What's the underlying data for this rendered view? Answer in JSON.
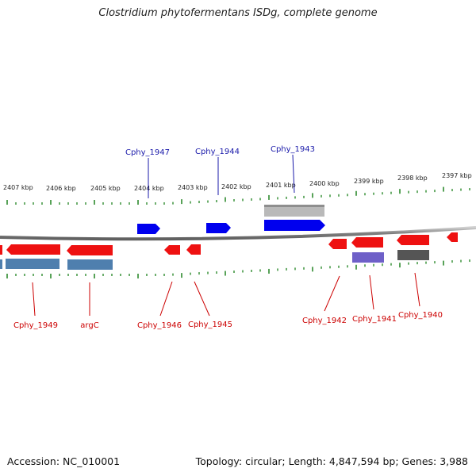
{
  "header": {
    "title": "Clostridium phytofermentans ISDg, complete genome"
  },
  "footer": {
    "accession": "Accession: NC_010001",
    "summary": "Topology: circular; Length: 4,847,594 bp; Genes: 3,988"
  },
  "colors": {
    "backbone": "#8a8a8a",
    "tick": "#2e8b2e",
    "forward_gene": "#0000ee",
    "reverse_gene": "#ee1111",
    "forward_label": "#1a1aaa",
    "reverse_label": "#cc0000",
    "blue_gray_feature": "#4f7fae",
    "violet_feature": "#6e60c8",
    "dark_feature": "#555555",
    "light_feature": "#b9b9b9"
  },
  "coordinate_labels": [
    "2407 kbp",
    "2406 kbp",
    "2405 kbp",
    "2404 kbp",
    "2403 kbp",
    "2402 kbp",
    "2401 kbp",
    "2400 kbp",
    "2399 kbp",
    "2398 kbp",
    "2397 kbp"
  ],
  "forward_genes": [
    {
      "name": "Cphy_1947",
      "icon": "right-arrow-icon"
    },
    {
      "name": "Cphy_1944",
      "icon": "right-arrow-icon"
    },
    {
      "name": "Cphy_1943",
      "icon": "right-arrow-icon"
    }
  ],
  "reverse_genes": [
    {
      "name": "Cphy_1949",
      "icon": "left-arrow-icon"
    },
    {
      "name": "argC",
      "icon": "left-arrow-icon"
    },
    {
      "name": "Cphy_1946",
      "icon": "left-arrow-icon"
    },
    {
      "name": "Cphy_1945",
      "icon": "left-arrow-icon"
    },
    {
      "name": "Cphy_1942",
      "icon": "left-arrow-icon"
    },
    {
      "name": "Cphy_1941",
      "icon": "left-arrow-icon"
    },
    {
      "name": "Cphy_1940",
      "icon": "left-arrow-icon"
    }
  ]
}
